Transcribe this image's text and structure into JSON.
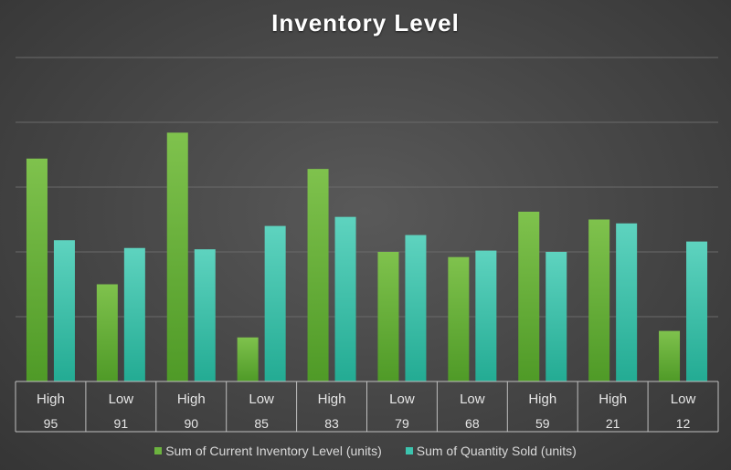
{
  "chart_data": {
    "type": "bar",
    "title": "Inventory Level",
    "categories": [
      {
        "level": "High",
        "id": "95"
      },
      {
        "level": "Low",
        "id": "91"
      },
      {
        "level": "High",
        "id": "90"
      },
      {
        "level": "Low",
        "id": "85"
      },
      {
        "level": "High",
        "id": "83"
      },
      {
        "level": "Low",
        "id": "79"
      },
      {
        "level": "Low",
        "id": "68"
      },
      {
        "level": "High",
        "id": "59"
      },
      {
        "level": "High",
        "id": "21"
      },
      {
        "level": "Low",
        "id": "12"
      }
    ],
    "series": [
      {
        "name": "Sum of Current Inventory Level (units)",
        "color": "#6cb33f",
        "values": [
          172,
          75,
          192,
          34,
          164,
          100,
          96,
          131,
          125,
          39
        ]
      },
      {
        "name": "Sum of Quantity Sold (units)",
        "color": "#3cc4ae",
        "values": [
          109,
          103,
          102,
          120,
          127,
          113,
          101,
          100,
          122,
          108
        ]
      }
    ],
    "ylim": [
      0,
      250
    ],
    "grid": true,
    "legend_position": "bottom"
  }
}
